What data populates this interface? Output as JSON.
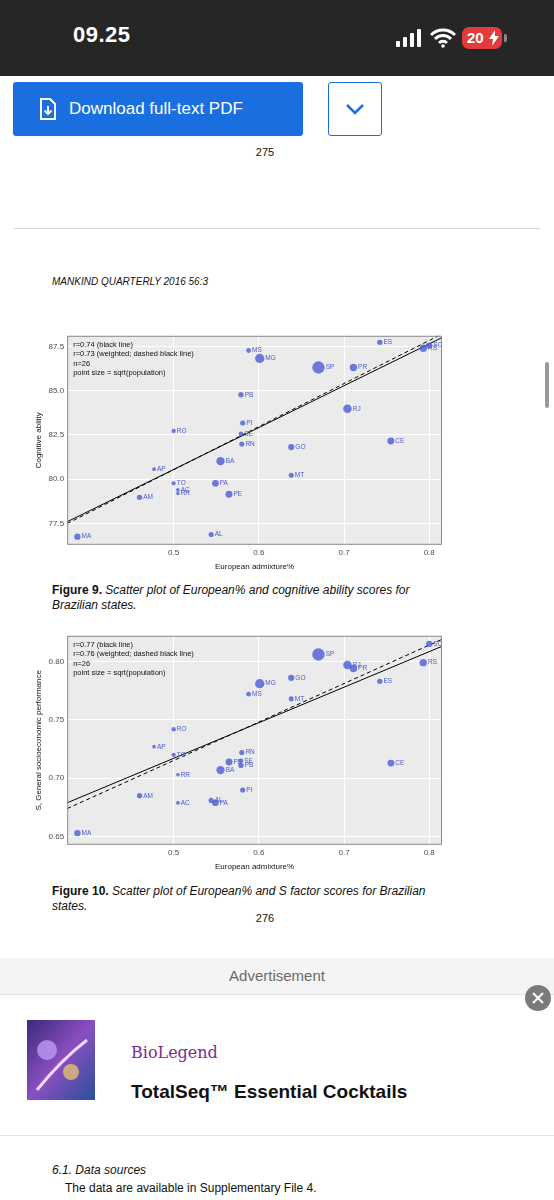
{
  "status_bar": {
    "time": "09.25",
    "battery": "20"
  },
  "toolbar": {
    "button": "Download full-text PDF"
  },
  "page_numbers": [
    "275",
    "276"
  ],
  "running_head": "MANKIND QUARTERLY 2016 56:3",
  "chart_data": [
    {
      "type": "scatter",
      "caption_label": "Figure 9.",
      "caption": "Scatter plot of European% and cognitive ability scores for Brazilian states.",
      "x_label": "European admixture%",
      "y_label": "Cognitive ability",
      "annotations": [
        "r=0.74 (black line)",
        "r=0.73 (weighted; dashed black line)",
        "n=26",
        "point size = sqrt(population)"
      ],
      "color": "#4a5bd4",
      "point_labels": [
        "ES",
        "SC",
        "RS",
        "MS",
        "MG",
        "SP",
        "PR",
        "PB",
        "RJ",
        "PI",
        "RO",
        "SE",
        "RN",
        "CE",
        "GO",
        "BA",
        "AP",
        "MT",
        "TO",
        "PA",
        "AC",
        "RR",
        "AM",
        "PE",
        "MA",
        "AL"
      ],
      "x": [
        0.742,
        0.8,
        0.793,
        0.588,
        0.601,
        0.67,
        0.711,
        0.579,
        0.704,
        0.581,
        0.5,
        0.579,
        0.58,
        0.755,
        0.638,
        0.555,
        0.477,
        0.638,
        0.5,
        0.549,
        0.505,
        0.505,
        0.46,
        0.565,
        0.387,
        0.544
      ],
      "values": [
        87.73,
        87.55,
        87.4,
        87.27,
        86.82,
        86.31,
        86.31,
        84.77,
        83.98,
        83.18,
        82.73,
        82.56,
        81.99,
        82.16,
        81.82,
        81.02,
        80.57,
        80.23,
        79.77,
        79.77,
        79.4,
        79.2,
        78.98,
        79.15,
        76.76,
        76.88
      ],
      "population": [
        3.9,
        6.7,
        11.2,
        2.6,
        20.7,
        44,
        11.1,
        3.9,
        16.5,
        3.2,
        1.7,
        2.2,
        3.4,
        8.9,
        6.5,
        15.2,
        0.75,
        3.2,
        1.5,
        8.2,
        0.8,
        0.5,
        3.9,
        9.3,
        6.9,
        3.3
      ],
      "fit_lines": [
        {
          "line_style": "solid",
          "color": "#000000",
          "x": [
            0.375,
            0.815
          ],
          "values": [
            77.6,
            88.0
          ]
        },
        {
          "line_style": "dashed",
          "color": "#000000",
          "x": [
            0.375,
            0.815
          ],
          "values": [
            77.5,
            88.2
          ]
        }
      ],
      "xlim": [
        0.375,
        0.815
      ],
      "xticks": [
        0.5,
        0.6,
        0.7,
        0.8
      ],
      "ylim": [
        76.3,
        88.1
      ],
      "yticks": [
        77.5,
        {
          "value": 80,
          "label": "80.0"
        },
        82.5,
        {
          "value": 85,
          "label": "85.0"
        },
        87.5
      ],
      "grid": true
    },
    {
      "type": "scatter",
      "caption_label": "Figure 10.",
      "caption": "Scatter plot of European% and S factor scores for Brazilian states.",
      "x_label": "European admixture%",
      "y_label": "S, General socioeconomic performance",
      "annotations": [
        "r=0.77 (black line)",
        "r=0.76 (weighted; dashed black line)",
        "n=26",
        "point size = sqrt(population)"
      ],
      "color": "#4a5bd4",
      "point_labels": [
        "ES",
        "SC",
        "RS",
        "MS",
        "MG",
        "SP",
        "PR",
        "PB",
        "RJ",
        "PI",
        "RO",
        "SE",
        "RN",
        "CE",
        "GO",
        "BA",
        "AP",
        "MT",
        "TO",
        "PA",
        "AC",
        "RR",
        "AM",
        "PE",
        "MA",
        "AL"
      ],
      "x": [
        0.742,
        0.8,
        0.793,
        0.588,
        0.601,
        0.67,
        0.711,
        0.579,
        0.704,
        0.581,
        0.5,
        0.579,
        0.58,
        0.755,
        0.638,
        0.555,
        0.477,
        0.638,
        0.5,
        0.549,
        0.505,
        0.505,
        0.46,
        0.565,
        0.387,
        0.544
      ],
      "values": [
        0.783,
        0.815,
        0.799,
        0.772,
        0.781,
        0.806,
        0.794,
        0.711,
        0.797,
        0.69,
        0.742,
        0.715,
        0.722,
        0.713,
        0.786,
        0.707,
        0.727,
        0.768,
        0.72,
        0.679,
        0.679,
        0.703,
        0.685,
        0.714,
        0.653,
        0.681
      ],
      "population": [
        3.9,
        6.7,
        11.2,
        2.6,
        20.7,
        44,
        11.1,
        3.9,
        16.5,
        3.2,
        1.7,
        2.2,
        3.4,
        8.9,
        6.5,
        15.2,
        0.75,
        3.2,
        1.5,
        8.2,
        0.8,
        0.5,
        3.9,
        9.3,
        6.9,
        3.3
      ],
      "fit_lines": [
        {
          "line_style": "solid",
          "color": "#000000",
          "x": [
            0.375,
            0.815
          ],
          "values": [
            0.679,
            0.813
          ]
        },
        {
          "line_style": "dashed",
          "color": "#000000",
          "x": [
            0.375,
            0.815
          ],
          "values": [
            0.674,
            0.819
          ]
        }
      ],
      "xlim": [
        0.375,
        0.815
      ],
      "xticks": [
        0.5,
        0.6,
        0.7,
        0.8
      ],
      "ylim": [
        0.643,
        0.822
      ],
      "yticks": [
        0.65,
        {
          "value": 0.7,
          "label": "0.70"
        },
        0.75,
        {
          "value": 0.8,
          "label": "0.80"
        }
      ],
      "grid": true
    }
  ],
  "advertisement": {
    "label": "Advertisement",
    "brand": "BioLegend",
    "product": "TotalSeq™ Essential Cocktails"
  },
  "section": {
    "heading": "6.1. Data sources",
    "text": "The data are available in Supplementary File 4."
  }
}
